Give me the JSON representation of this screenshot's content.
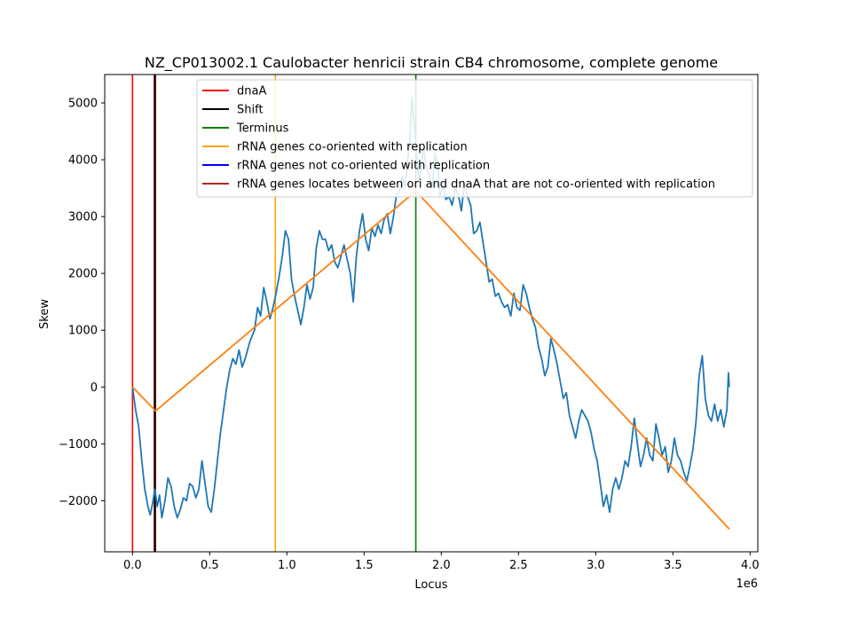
{
  "chart_data": {
    "type": "line",
    "title": "NZ_CP013002.1 Caulobacter henricii strain CB4 chromosome, complete genome",
    "xlabel": "Locus",
    "ylabel": "Skew",
    "x_offset_label": "1e6",
    "xlim": [
      -180000,
      4050000
    ],
    "ylim": [
      -2900,
      5500
    ],
    "x_ticks": [
      {
        "value": 0,
        "label": "0.0"
      },
      {
        "value": 500000,
        "label": "0.5"
      },
      {
        "value": 1000000,
        "label": "1.0"
      },
      {
        "value": 1500000,
        "label": "1.5"
      },
      {
        "value": 2000000,
        "label": "2.0"
      },
      {
        "value": 2500000,
        "label": "2.5"
      },
      {
        "value": 3000000,
        "label": "3.0"
      },
      {
        "value": 3500000,
        "label": "3.5"
      },
      {
        "value": 4000000,
        "label": "4.0"
      }
    ],
    "y_ticks": [
      {
        "value": -2000,
        "label": "−2000"
      },
      {
        "value": -1000,
        "label": "−1000"
      },
      {
        "value": 0,
        "label": "0"
      },
      {
        "value": 1000,
        "label": "1000"
      },
      {
        "value": 2000,
        "label": "2000"
      },
      {
        "value": 3000,
        "label": "3000"
      },
      {
        "value": 4000,
        "label": "4000"
      },
      {
        "value": 5000,
        "label": "5000"
      }
    ],
    "grid": false,
    "legend_position": "top",
    "legend": [
      {
        "label": "dnaA",
        "color": "#ff0000"
      },
      {
        "label": "Shift",
        "color": "#000000"
      },
      {
        "label": "Terminus",
        "color": "#008000"
      },
      {
        "label": "rRNA genes co-oriented with replication",
        "color": "#ffa500"
      },
      {
        "label": "rRNA genes not co-oriented with replication",
        "color": "#0000ff"
      },
      {
        "label": "rRNA genes locates between ori and dnaA that are not co-oriented with replication",
        "color": "#a52a2a"
      }
    ],
    "vertical_lines": [
      {
        "x": 0,
        "color": "#ff0000",
        "width": 1.6
      },
      {
        "x": 145000,
        "color": "#a52a2a",
        "width": 3
      },
      {
        "x": 145000,
        "color": "#000000",
        "width": 1.6
      },
      {
        "x": 925000,
        "color": "#ffa500",
        "width": 1.6
      },
      {
        "x": 1835000,
        "color": "#008000",
        "width": 1.6
      }
    ],
    "series": [
      {
        "color": "#1f77b4",
        "points": [
          [
            0,
            0
          ],
          [
            20000,
            -400
          ],
          [
            40000,
            -700
          ],
          [
            60000,
            -1300
          ],
          [
            80000,
            -1800
          ],
          [
            100000,
            -2100
          ],
          [
            115000,
            -2250
          ],
          [
            130000,
            -2050
          ],
          [
            145000,
            -1800
          ],
          [
            160000,
            -2100
          ],
          [
            175000,
            -1900
          ],
          [
            190000,
            -2300
          ],
          [
            210000,
            -2000
          ],
          [
            230000,
            -1600
          ],
          [
            250000,
            -1750
          ],
          [
            270000,
            -2100
          ],
          [
            290000,
            -2300
          ],
          [
            310000,
            -2150
          ],
          [
            330000,
            -1950
          ],
          [
            350000,
            -2000
          ],
          [
            370000,
            -1700
          ],
          [
            390000,
            -1750
          ],
          [
            410000,
            -1950
          ],
          [
            430000,
            -1800
          ],
          [
            450000,
            -1300
          ],
          [
            470000,
            -1700
          ],
          [
            490000,
            -2100
          ],
          [
            510000,
            -2200
          ],
          [
            530000,
            -1800
          ],
          [
            550000,
            -1300
          ],
          [
            570000,
            -800
          ],
          [
            590000,
            -400
          ],
          [
            610000,
            0
          ],
          [
            630000,
            300
          ],
          [
            650000,
            500
          ],
          [
            670000,
            400
          ],
          [
            690000,
            650
          ],
          [
            710000,
            350
          ],
          [
            730000,
            500
          ],
          [
            760000,
            800
          ],
          [
            790000,
            1000
          ],
          [
            810000,
            1400
          ],
          [
            830000,
            1250
          ],
          [
            850000,
            1750
          ],
          [
            870000,
            1500
          ],
          [
            890000,
            1200
          ],
          [
            910000,
            1400
          ],
          [
            930000,
            1650
          ],
          [
            950000,
            1950
          ],
          [
            970000,
            2300
          ],
          [
            990000,
            2750
          ],
          [
            1010000,
            2600
          ],
          [
            1030000,
            1900
          ],
          [
            1050000,
            1600
          ],
          [
            1070000,
            1350
          ],
          [
            1090000,
            1100
          ],
          [
            1110000,
            1400
          ],
          [
            1130000,
            1800
          ],
          [
            1150000,
            1550
          ],
          [
            1170000,
            1750
          ],
          [
            1190000,
            2450
          ],
          [
            1210000,
            2750
          ],
          [
            1230000,
            2600
          ],
          [
            1250000,
            2600
          ],
          [
            1270000,
            2400
          ],
          [
            1290000,
            2500
          ],
          [
            1310000,
            2200
          ],
          [
            1330000,
            2100
          ],
          [
            1350000,
            2300
          ],
          [
            1370000,
            2500
          ],
          [
            1390000,
            2250
          ],
          [
            1410000,
            2000
          ],
          [
            1430000,
            1500
          ],
          [
            1450000,
            2300
          ],
          [
            1470000,
            2750
          ],
          [
            1490000,
            3050
          ],
          [
            1510000,
            2600
          ],
          [
            1530000,
            2400
          ],
          [
            1550000,
            2800
          ],
          [
            1570000,
            2650
          ],
          [
            1590000,
            2850
          ],
          [
            1610000,
            2700
          ],
          [
            1630000,
            2950
          ],
          [
            1650000,
            3050
          ],
          [
            1670000,
            2700
          ],
          [
            1690000,
            3000
          ],
          [
            1710000,
            3400
          ],
          [
            1730000,
            3450
          ],
          [
            1750000,
            3700
          ],
          [
            1765000,
            3500
          ],
          [
            1780000,
            3950
          ],
          [
            1795000,
            4300
          ],
          [
            1810000,
            5100
          ],
          [
            1825000,
            4600
          ],
          [
            1840000,
            4100
          ],
          [
            1855000,
            3600
          ],
          [
            1870000,
            3900
          ],
          [
            1885000,
            4200
          ],
          [
            1900000,
            3900
          ],
          [
            1920000,
            3750
          ],
          [
            1940000,
            3500
          ],
          [
            1960000,
            4100
          ],
          [
            1975000,
            3950
          ],
          [
            1990000,
            3350
          ],
          [
            2010000,
            3550
          ],
          [
            2030000,
            3300
          ],
          [
            2050000,
            3350
          ],
          [
            2070000,
            3200
          ],
          [
            2090000,
            3500
          ],
          [
            2110000,
            3400
          ],
          [
            2130000,
            3100
          ],
          [
            2150000,
            3600
          ],
          [
            2170000,
            3350
          ],
          [
            2190000,
            3200
          ],
          [
            2210000,
            2700
          ],
          [
            2230000,
            2750
          ],
          [
            2250000,
            2900
          ],
          [
            2270000,
            2550
          ],
          [
            2290000,
            2200
          ],
          [
            2310000,
            1850
          ],
          [
            2330000,
            1900
          ],
          [
            2350000,
            1600
          ],
          [
            2370000,
            1650
          ],
          [
            2390000,
            1500
          ],
          [
            2410000,
            1400
          ],
          [
            2430000,
            1450
          ],
          [
            2450000,
            1250
          ],
          [
            2470000,
            1650
          ],
          [
            2490000,
            1400
          ],
          [
            2510000,
            1350
          ],
          [
            2530000,
            1800
          ],
          [
            2550000,
            1650
          ],
          [
            2570000,
            1400
          ],
          [
            2590000,
            1200
          ],
          [
            2610000,
            1050
          ],
          [
            2630000,
            700
          ],
          [
            2650000,
            500
          ],
          [
            2670000,
            200
          ],
          [
            2690000,
            350
          ],
          [
            2710000,
            850
          ],
          [
            2730000,
            650
          ],
          [
            2750000,
            400
          ],
          [
            2770000,
            100
          ],
          [
            2790000,
            -200
          ],
          [
            2810000,
            -100
          ],
          [
            2830000,
            -500
          ],
          [
            2850000,
            -700
          ],
          [
            2870000,
            -900
          ],
          [
            2890000,
            -600
          ],
          [
            2910000,
            -400
          ],
          [
            2930000,
            -500
          ],
          [
            2950000,
            -600
          ],
          [
            2970000,
            -800
          ],
          [
            2990000,
            -1100
          ],
          [
            3010000,
            -1300
          ],
          [
            3030000,
            -1700
          ],
          [
            3050000,
            -2100
          ],
          [
            3070000,
            -1900
          ],
          [
            3090000,
            -2200
          ],
          [
            3110000,
            -1800
          ],
          [
            3130000,
            -1600
          ],
          [
            3150000,
            -1800
          ],
          [
            3170000,
            -1600
          ],
          [
            3190000,
            -1300
          ],
          [
            3210000,
            -1400
          ],
          [
            3230000,
            -1050
          ],
          [
            3250000,
            -550
          ],
          [
            3270000,
            -1000
          ],
          [
            3290000,
            -1400
          ],
          [
            3310000,
            -1200
          ],
          [
            3330000,
            -900
          ],
          [
            3350000,
            -1200
          ],
          [
            3370000,
            -1300
          ],
          [
            3390000,
            -650
          ],
          [
            3410000,
            -900
          ],
          [
            3430000,
            -1200
          ],
          [
            3450000,
            -1050
          ],
          [
            3470000,
            -1500
          ],
          [
            3490000,
            -1300
          ],
          [
            3510000,
            -900
          ],
          [
            3530000,
            -1200
          ],
          [
            3550000,
            -1300
          ],
          [
            3570000,
            -1500
          ],
          [
            3590000,
            -1650
          ],
          [
            3610000,
            -1400
          ],
          [
            3630000,
            -1100
          ],
          [
            3650000,
            -600
          ],
          [
            3670000,
            200
          ],
          [
            3690000,
            550
          ],
          [
            3710000,
            -200
          ],
          [
            3730000,
            -500
          ],
          [
            3750000,
            -600
          ],
          [
            3770000,
            -300
          ],
          [
            3790000,
            -600
          ],
          [
            3810000,
            -400
          ],
          [
            3830000,
            -700
          ],
          [
            3850000,
            -400
          ],
          [
            3860000,
            250
          ],
          [
            3865000,
            0
          ]
        ]
      },
      {
        "color": "#ff7f0e",
        "points": [
          [
            0,
            0
          ],
          [
            150000,
            -420
          ],
          [
            1835000,
            3450
          ],
          [
            3865000,
            -2500
          ]
        ]
      }
    ]
  }
}
